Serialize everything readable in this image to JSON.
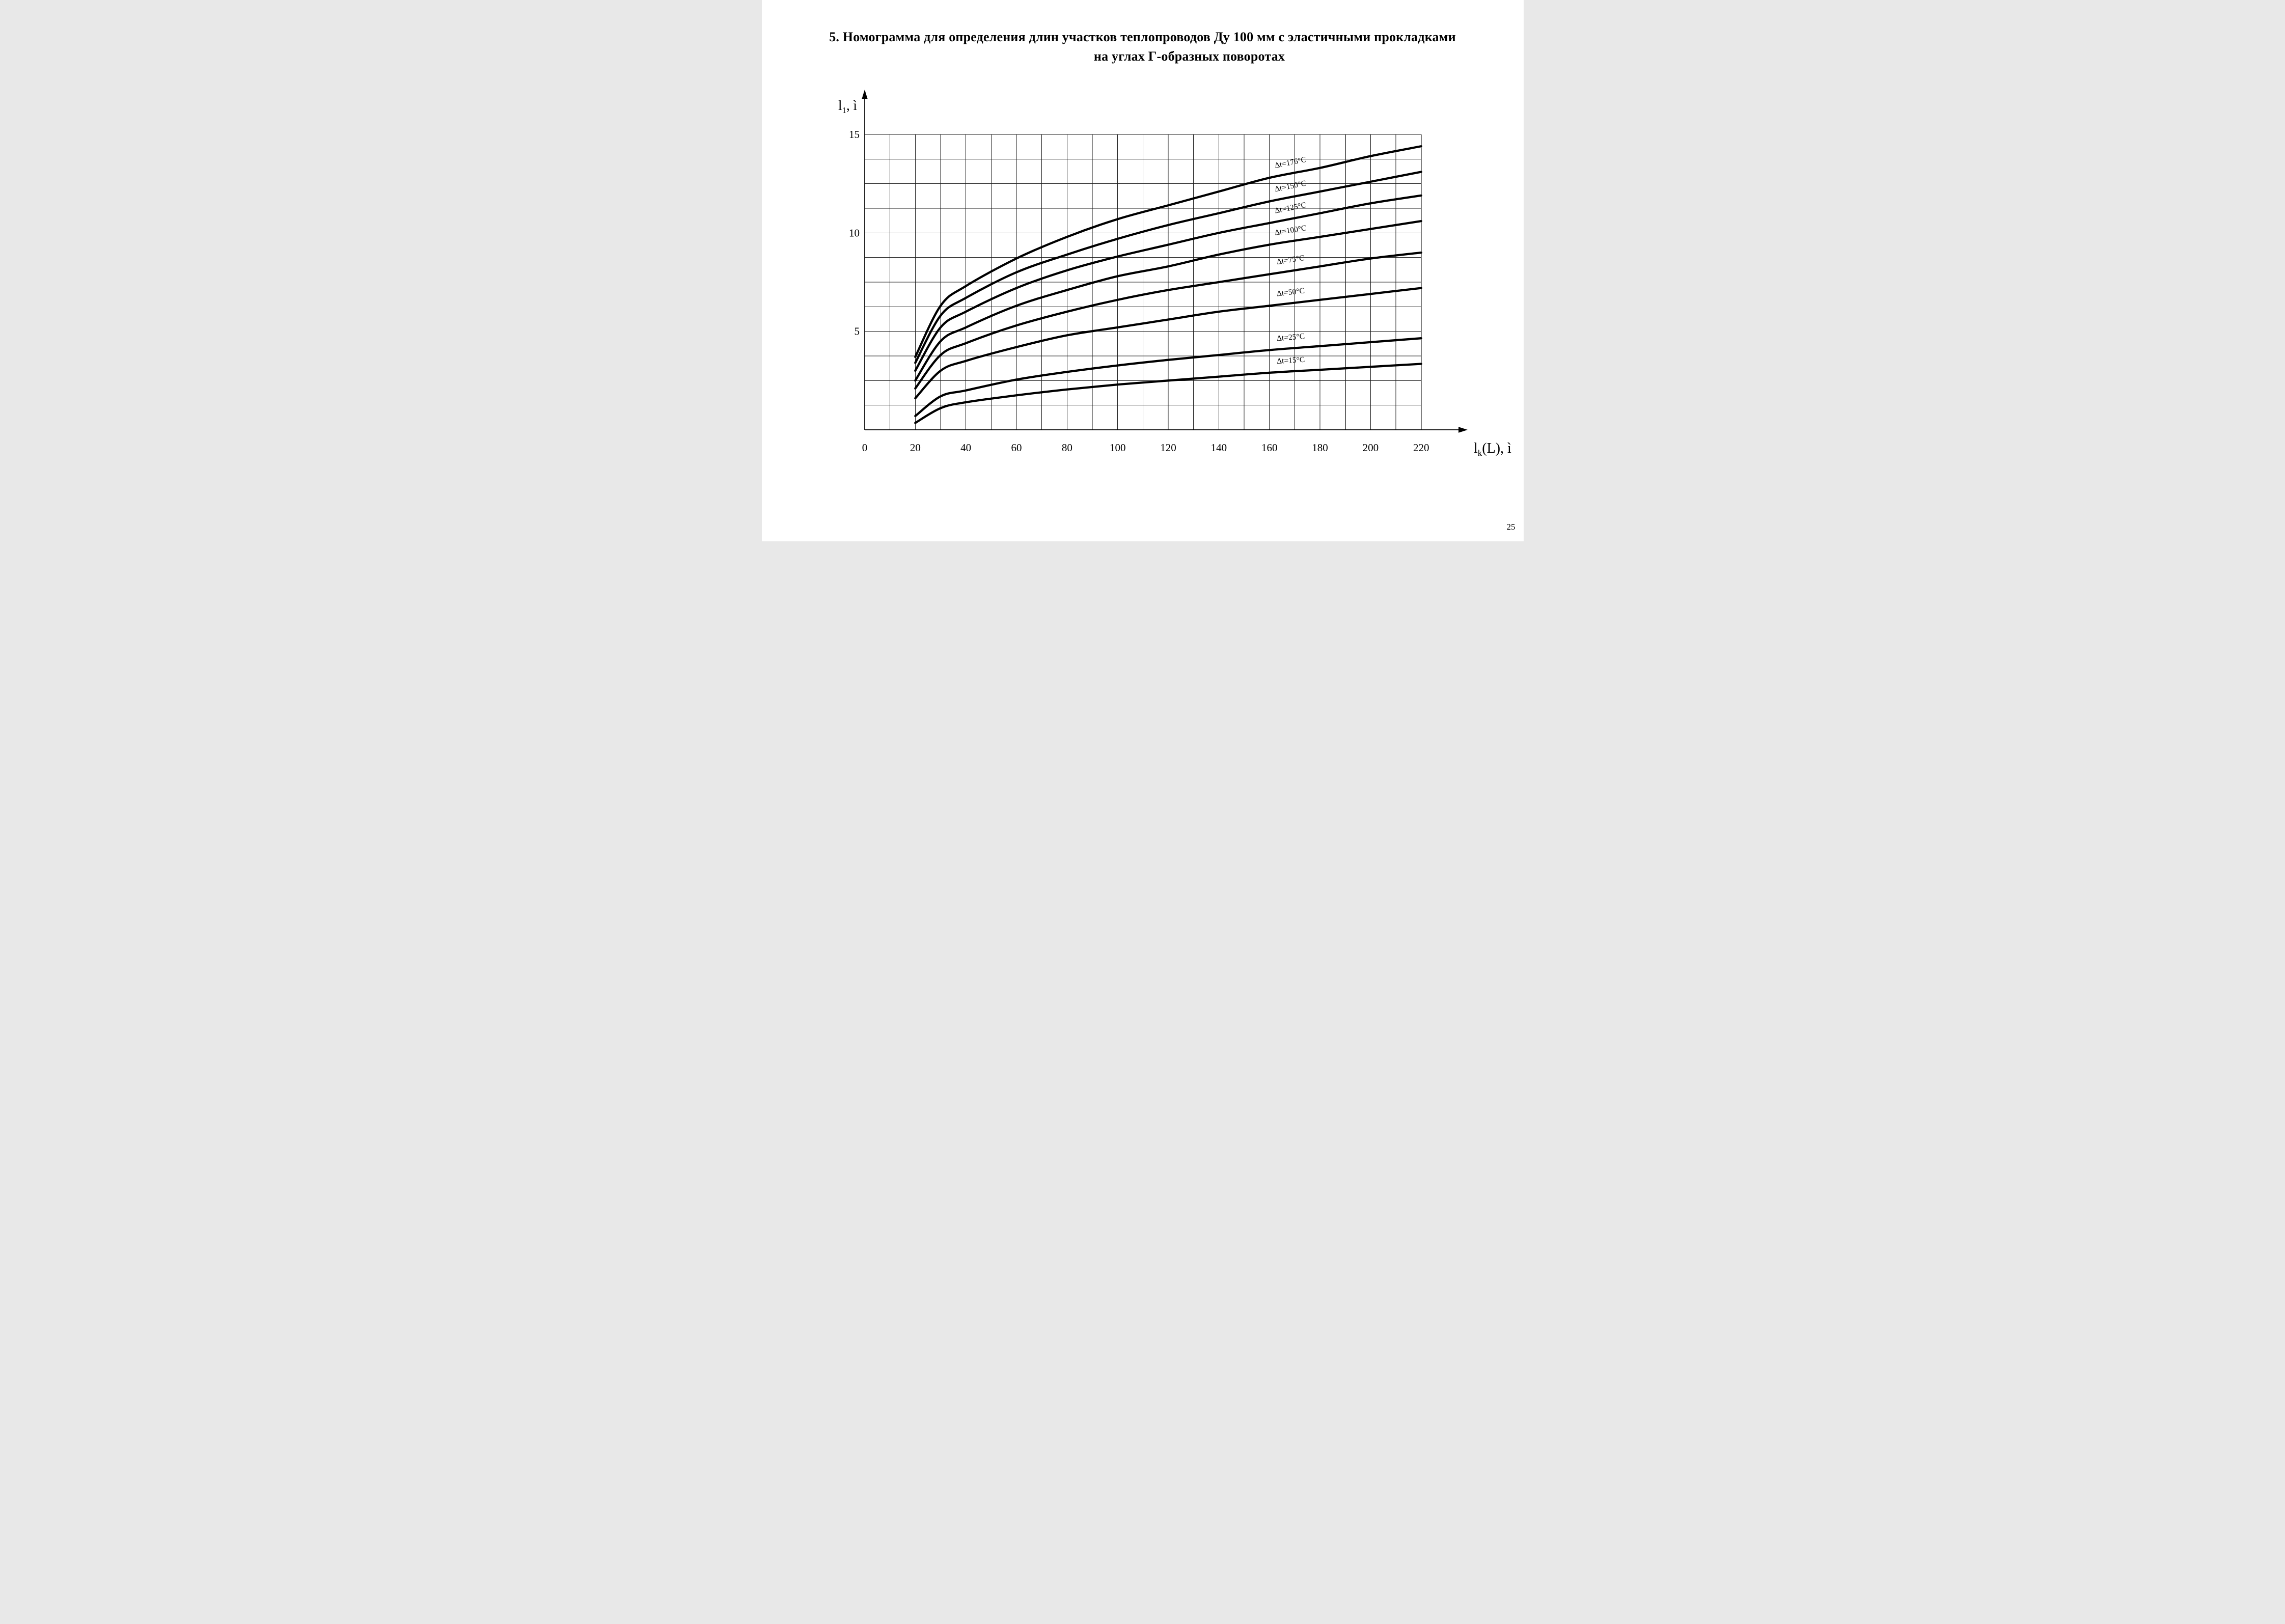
{
  "page": {
    "number": "25",
    "background": "#ffffff",
    "ink": "#000000"
  },
  "title": {
    "line1": "5.  Номограмма для определения длин участков теплопроводов Ду 100 мм с эластичными прокладками",
    "line2": "на углах Г-образных поворотах"
  },
  "chart_data": {
    "type": "line",
    "title": "",
    "xlabel": "lk(L), ì",
    "ylabel": "l1, ì",
    "x_axis_label_parts": {
      "main": "l",
      "sub": "k",
      "rest": "(L), ì"
    },
    "y_axis_label_parts": {
      "main": "l",
      "sub": "1",
      "rest": ", ì"
    },
    "x_ticks": [
      0,
      20,
      40,
      60,
      80,
      100,
      120,
      140,
      160,
      180,
      200,
      220
    ],
    "y_ticks": [
      5,
      10,
      15
    ],
    "xlim": [
      0,
      236
    ],
    "ylim": [
      0,
      16.8
    ],
    "x_grid_step": 10,
    "y_grid_step": 1.25,
    "grid": "on",
    "legend_position": "labels-on-curves",
    "x": [
      20,
      30,
      40,
      60,
      80,
      100,
      120,
      140,
      160,
      180,
      200,
      220
    ],
    "series": [
      {
        "name": "Δt=176°C",
        "values": [
          3.7,
          6.3,
          7.3,
          8.7,
          9.8,
          10.7,
          11.4,
          12.1,
          12.8,
          13.3,
          13.9,
          14.4
        ]
      },
      {
        "name": "Δt=150°C",
        "values": [
          3.4,
          5.8,
          6.7,
          8.0,
          8.9,
          9.7,
          10.4,
          11.0,
          11.6,
          12.1,
          12.6,
          13.1
        ]
      },
      {
        "name": "Δt=125°C",
        "values": [
          3.0,
          5.2,
          6.0,
          7.2,
          8.1,
          8.8,
          9.4,
          10.0,
          10.5,
          11.0,
          11.5,
          11.9
        ]
      },
      {
        "name": "Δt=100°C",
        "values": [
          2.5,
          4.5,
          5.2,
          6.3,
          7.1,
          7.8,
          8.3,
          8.9,
          9.4,
          9.8,
          10.2,
          10.6
        ]
      },
      {
        "name": "Δt=75°C",
        "values": [
          2.1,
          3.8,
          4.4,
          5.3,
          6.0,
          6.6,
          7.1,
          7.5,
          7.9,
          8.3,
          8.7,
          9.0
        ]
      },
      {
        "name": "Δt=50°C",
        "values": [
          1.6,
          3.0,
          3.5,
          4.2,
          4.8,
          5.2,
          5.6,
          6.0,
          6.3,
          6.6,
          6.9,
          7.2
        ]
      },
      {
        "name": "Δt=25°C",
        "values": [
          0.7,
          1.7,
          2.0,
          2.55,
          2.94,
          3.27,
          3.55,
          3.8,
          4.05,
          4.25,
          4.45,
          4.65
        ]
      },
      {
        "name": "Δt=15°C",
        "values": [
          0.35,
          1.1,
          1.4,
          1.75,
          2.05,
          2.3,
          2.5,
          2.7,
          2.9,
          3.05,
          3.2,
          3.35
        ]
      }
    ]
  }
}
